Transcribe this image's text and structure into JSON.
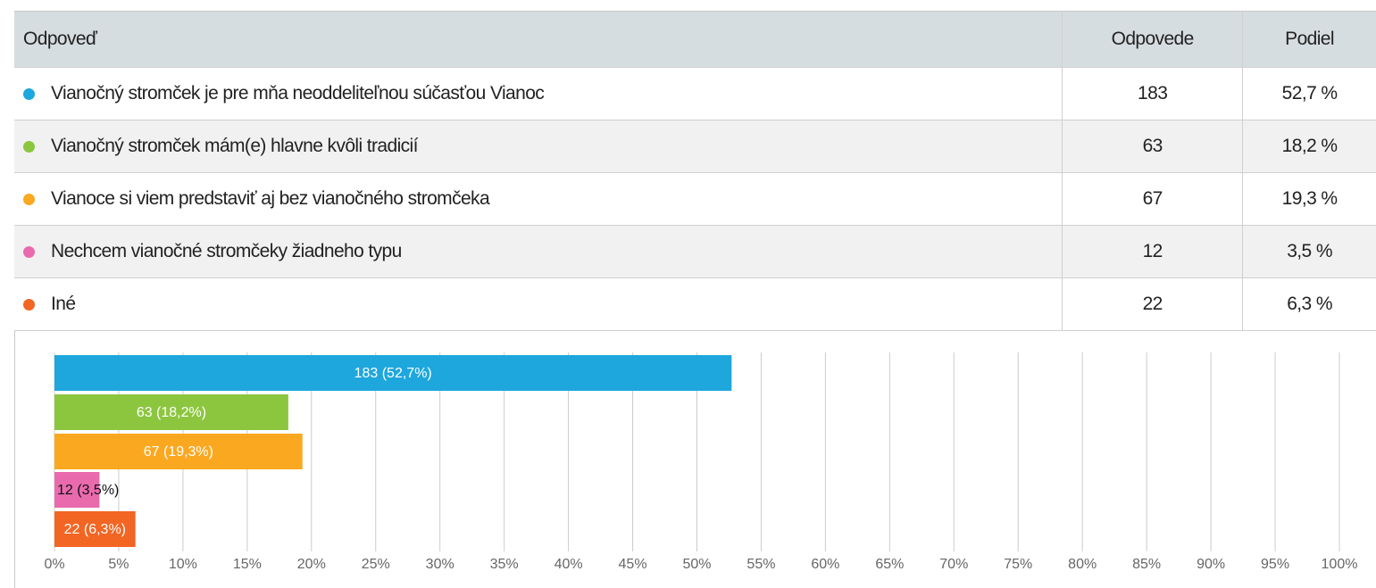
{
  "table": {
    "header": [
      "Odpoveď",
      "Odpovede",
      "Podiel"
    ],
    "rows": [
      [
        "Vianočný stromček je pre mňa neoddeliteľnou súčasťou Vianoc",
        183,
        "52,7 %"
      ],
      [
        "Vianočný stromček mám(e) hlavne kvôli tradicií",
        63,
        "18,2 %"
      ],
      [
        "Vianoce si viem predstaviť aj bez vianočného stromčeka",
        67,
        "19,3 %"
      ],
      [
        "Nechcem vianočné stromčeky žiadneho typu",
        12,
        "3,5 %"
      ],
      [
        "Iné",
        22,
        "6,3 %"
      ]
    ]
  },
  "chart_data": {
    "type": "hbar",
    "categories": [
      null,
      null,
      null,
      null,
      null
    ],
    "values": [
      52.7,
      18.2,
      19.3,
      3.5,
      6.3
    ],
    "value_labels": [
      "183 (52,7%)",
      "63 (18,2%)",
      "67 (19,3%)",
      "12 (3,5%)",
      "22 (6,3%)"
    ],
    "colors": [
      "#1ea7dd",
      "#8cc63f",
      "#fba821",
      "#e96aad",
      "#f26522"
    ],
    "xlim": [
      0,
      100
    ],
    "xticks": [
      {
        "value": 0,
        "label": "0%"
      },
      {
        "value": 5,
        "label": "5%"
      },
      {
        "value": 10,
        "label": "10%"
      },
      {
        "value": 15,
        "label": "15%"
      },
      {
        "value": 20,
        "label": "20%"
      },
      {
        "value": 25,
        "label": "25%"
      },
      {
        "value": 30,
        "label": "30%"
      },
      {
        "value": 35,
        "label": "35%"
      },
      {
        "value": 40,
        "label": "40%"
      },
      {
        "value": 45,
        "label": "45%"
      },
      {
        "value": 50,
        "label": "50%"
      },
      {
        "value": 55,
        "label": "55%"
      },
      {
        "value": 60,
        "label": "60%"
      },
      {
        "value": 65,
        "label": "65%"
      },
      {
        "value": 70,
        "label": "70%"
      },
      {
        "value": 75,
        "label": "75%"
      },
      {
        "value": 80,
        "label": "80%"
      },
      {
        "value": 85,
        "label": "85%"
      },
      {
        "value": 90,
        "label": "90%"
      },
      {
        "value": 95,
        "label": "95%"
      },
      {
        "value": 100,
        "label": "100%"
      }
    ],
    "grid": true
  }
}
